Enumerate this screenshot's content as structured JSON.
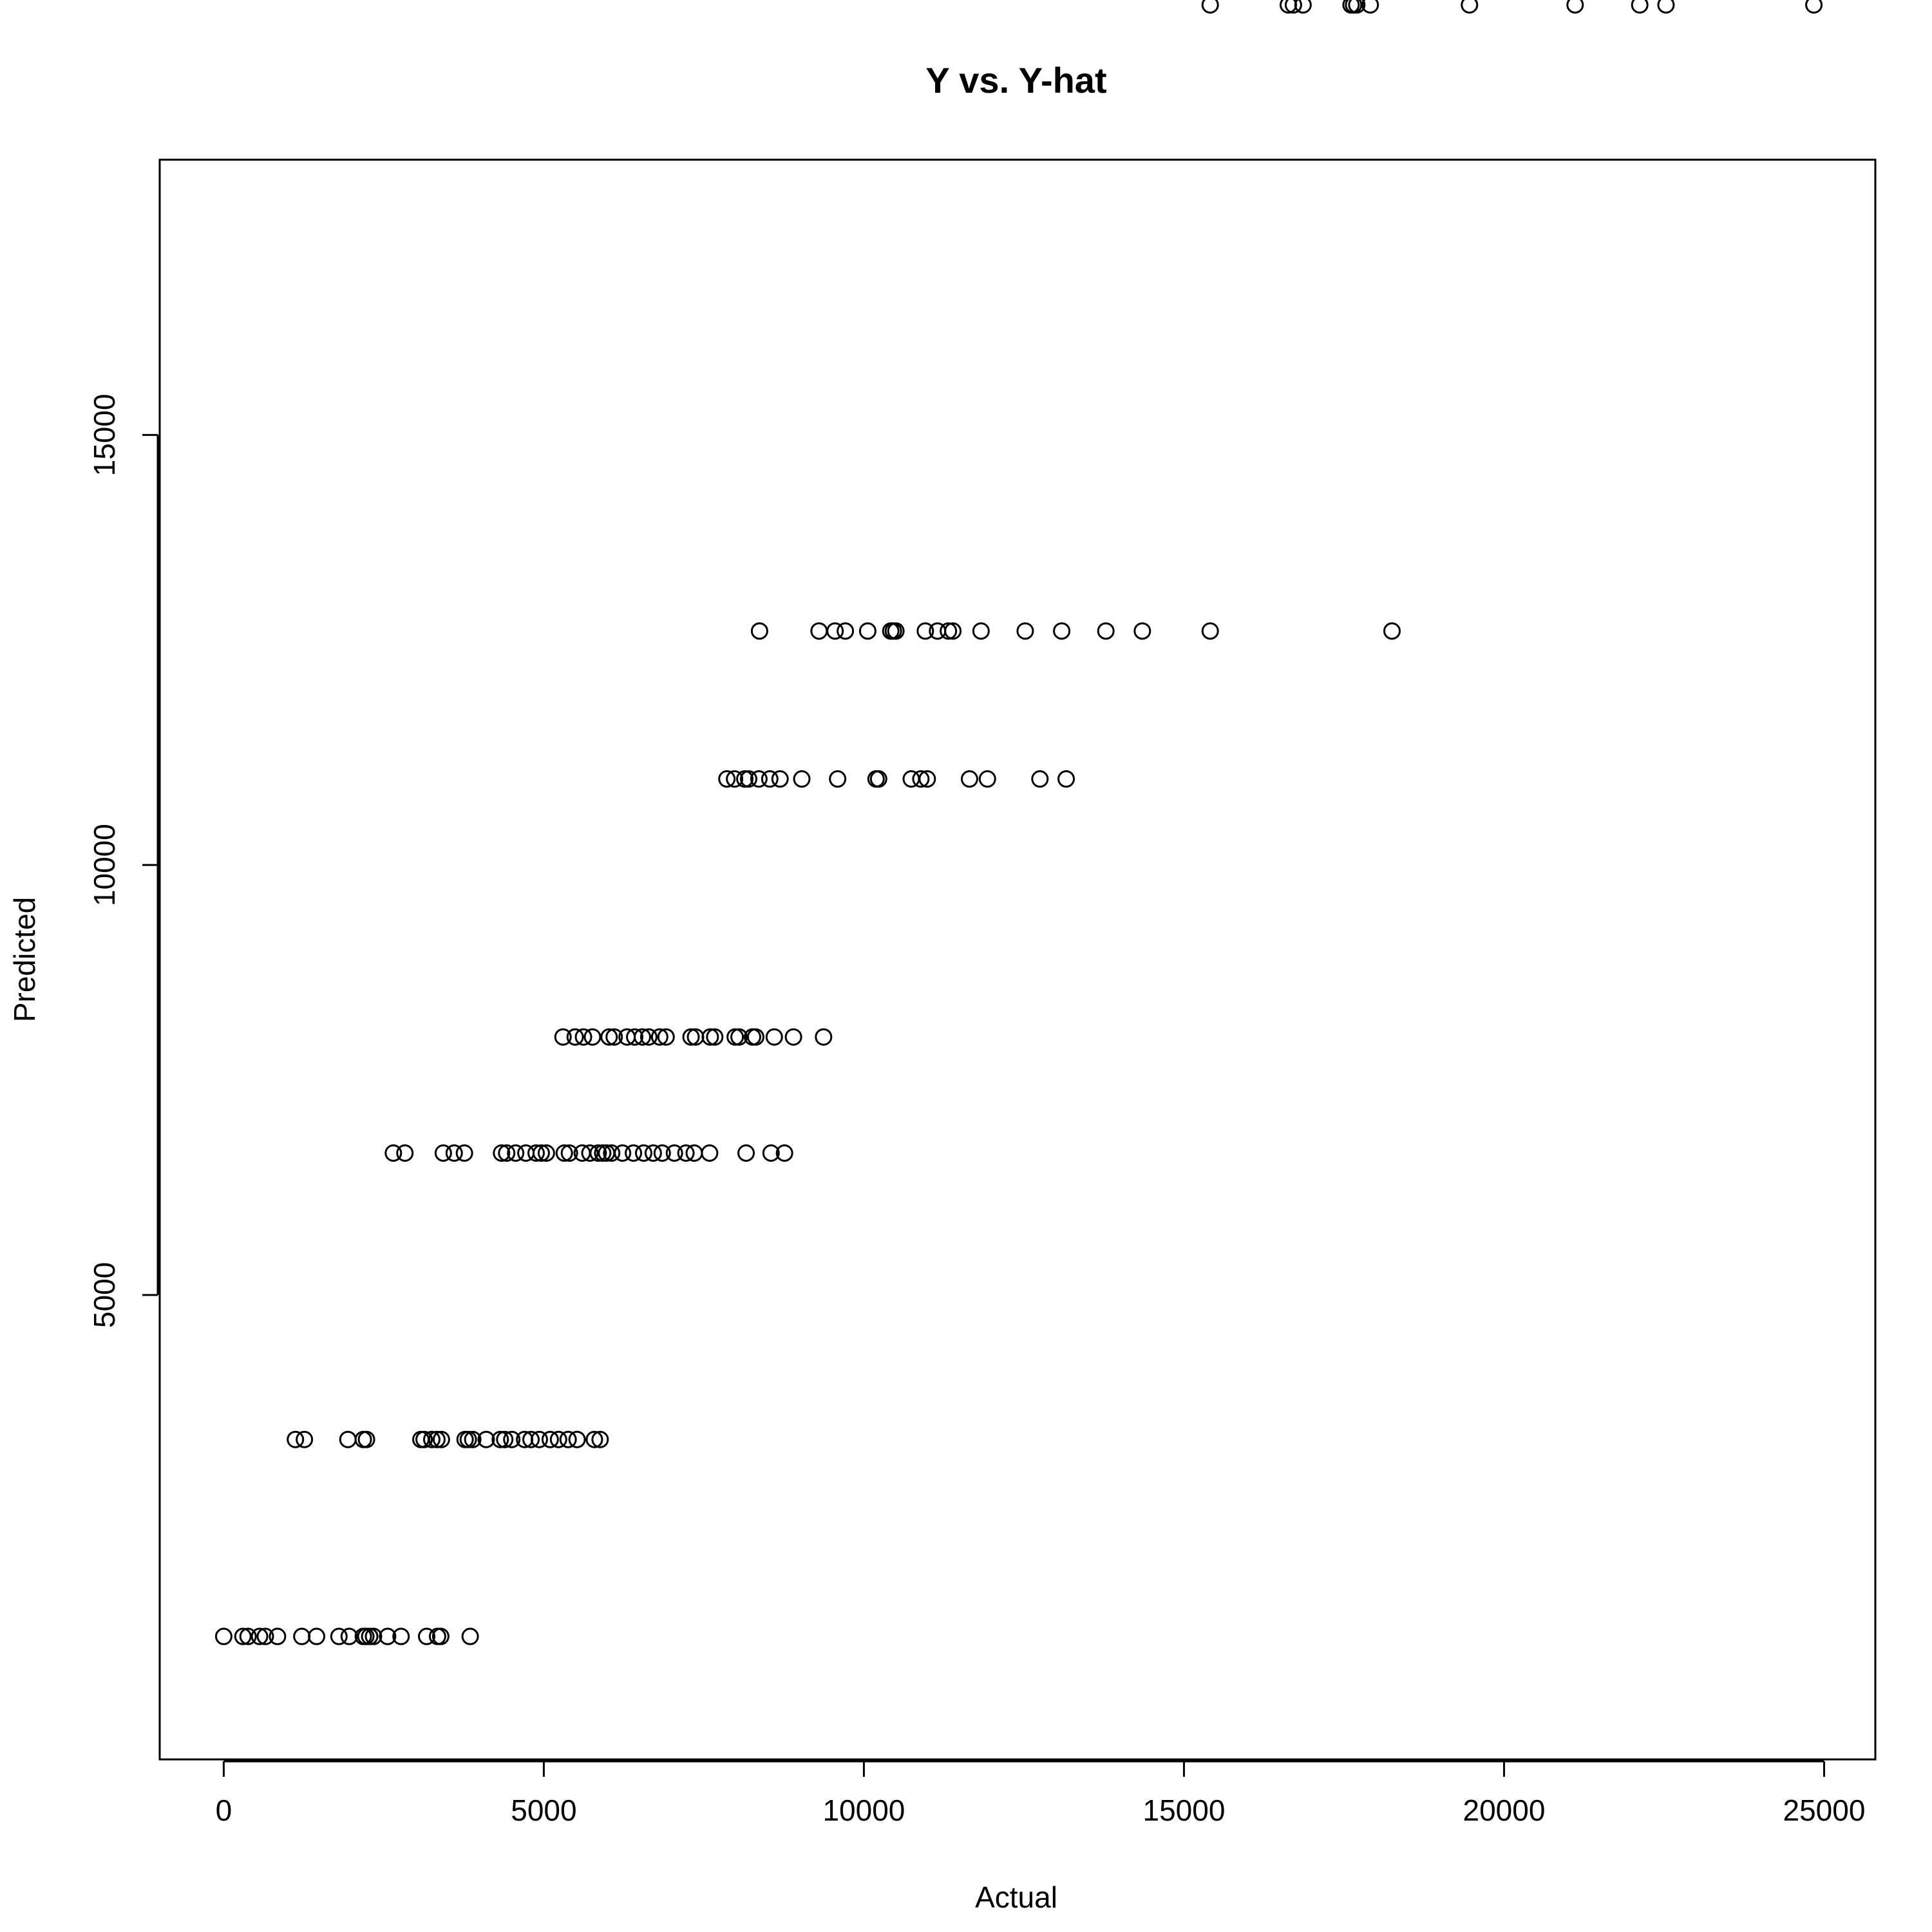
{
  "chart_data": {
    "type": "scatter",
    "title": "Y vs. Y-hat",
    "xlabel": "Actual",
    "ylabel": "Predicted",
    "xlim": [
      -1000,
      25800
    ],
    "ylim": [
      -400,
      18200
    ],
    "x_ticks": [
      {
        "value": 0,
        "label": "0"
      },
      {
        "value": 5000,
        "label": "5000"
      },
      {
        "value": 10000,
        "label": "10000"
      },
      {
        "value": 15000,
        "label": "15000"
      },
      {
        "value": 20000,
        "label": "20000"
      },
      {
        "value": 25000,
        "label": "25000"
      }
    ],
    "y_ticks": [
      {
        "value": 5000,
        "label": "5000"
      },
      {
        "value": 10000,
        "label": "10000"
      },
      {
        "value": 15000,
        "label": "15000"
      }
    ],
    "grid": false,
    "marker": "open-circle",
    "series": [
      {
        "points": [
          [
            0,
            1030
          ],
          [
            300,
            1030
          ],
          [
            380,
            1030
          ],
          [
            560,
            1030
          ],
          [
            650,
            1030
          ],
          [
            840,
            1030
          ],
          [
            1220,
            1030
          ],
          [
            1450,
            1030
          ],
          [
            1800,
            1030
          ],
          [
            1960,
            1030
          ],
          [
            2180,
            1030
          ],
          [
            2220,
            1030
          ],
          [
            2280,
            1030
          ],
          [
            2340,
            1030
          ],
          [
            2560,
            1030
          ],
          [
            2770,
            1030
          ],
          [
            3170,
            1030
          ],
          [
            3340,
            1030
          ],
          [
            3390,
            1030
          ],
          [
            3850,
            1030
          ],
          [
            1120,
            3320
          ],
          [
            1260,
            3320
          ],
          [
            1940,
            3320
          ],
          [
            2180,
            3320
          ],
          [
            2230,
            3320
          ],
          [
            3080,
            3320
          ],
          [
            3130,
            3320
          ],
          [
            3250,
            3320
          ],
          [
            3330,
            3320
          ],
          [
            3400,
            3320
          ],
          [
            3770,
            3320
          ],
          [
            3820,
            3320
          ],
          [
            3890,
            3320
          ],
          [
            4100,
            3320
          ],
          [
            4320,
            3320
          ],
          [
            4390,
            3320
          ],
          [
            4500,
            3320
          ],
          [
            4700,
            3320
          ],
          [
            4800,
            3320
          ],
          [
            4930,
            3320
          ],
          [
            5100,
            3320
          ],
          [
            5230,
            3320
          ],
          [
            5380,
            3320
          ],
          [
            5520,
            3320
          ],
          [
            5790,
            3320
          ],
          [
            5880,
            3320
          ],
          [
            2650,
            6650
          ],
          [
            2830,
            6650
          ],
          [
            3430,
            6650
          ],
          [
            3600,
            6650
          ],
          [
            3760,
            6650
          ],
          [
            4340,
            6650
          ],
          [
            4420,
            6650
          ],
          [
            4560,
            6650
          ],
          [
            4720,
            6650
          ],
          [
            4880,
            6650
          ],
          [
            4960,
            6650
          ],
          [
            5040,
            6650
          ],
          [
            5320,
            6650
          ],
          [
            5400,
            6650
          ],
          [
            5600,
            6650
          ],
          [
            5720,
            6650
          ],
          [
            5850,
            6650
          ],
          [
            5920,
            6650
          ],
          [
            5980,
            6650
          ],
          [
            6060,
            6650
          ],
          [
            6230,
            6650
          ],
          [
            6400,
            6650
          ],
          [
            6560,
            6650
          ],
          [
            6710,
            6650
          ],
          [
            6850,
            6650
          ],
          [
            7040,
            6650
          ],
          [
            7220,
            6650
          ],
          [
            7350,
            6650
          ],
          [
            7590,
            6650
          ],
          [
            8160,
            6650
          ],
          [
            8550,
            6650
          ],
          [
            8760,
            6650
          ],
          [
            5300,
            8000
          ],
          [
            5490,
            8000
          ],
          [
            5620,
            8000
          ],
          [
            5760,
            8000
          ],
          [
            6020,
            8000
          ],
          [
            6100,
            8000
          ],
          [
            6300,
            8000
          ],
          [
            6420,
            8000
          ],
          [
            6540,
            8000
          ],
          [
            6640,
            8000
          ],
          [
            6810,
            8000
          ],
          [
            6910,
            8000
          ],
          [
            7300,
            8000
          ],
          [
            7370,
            8000
          ],
          [
            7600,
            8000
          ],
          [
            7670,
            8000
          ],
          [
            7990,
            8000
          ],
          [
            8050,
            8000
          ],
          [
            8260,
            8000
          ],
          [
            8310,
            8000
          ],
          [
            8600,
            8000
          ],
          [
            8900,
            8000
          ],
          [
            9370,
            8000
          ],
          [
            7860,
            11000
          ],
          [
            7980,
            11000
          ],
          [
            8140,
            11000
          ],
          [
            8200,
            11000
          ],
          [
            8360,
            11000
          ],
          [
            8530,
            11000
          ],
          [
            8690,
            11000
          ],
          [
            9030,
            11000
          ],
          [
            9590,
            11000
          ],
          [
            10190,
            11000
          ],
          [
            10230,
            11000
          ],
          [
            10740,
            11000
          ],
          [
            10890,
            11000
          ],
          [
            10990,
            11000
          ],
          [
            11650,
            11000
          ],
          [
            11930,
            11000
          ],
          [
            12750,
            11000
          ],
          [
            13160,
            11000
          ],
          [
            8370,
            12720
          ],
          [
            9300,
            12720
          ],
          [
            9550,
            12720
          ],
          [
            9710,
            12720
          ],
          [
            10060,
            12720
          ],
          [
            10420,
            12720
          ],
          [
            10460,
            12720
          ],
          [
            10500,
            12720
          ],
          [
            10960,
            12720
          ],
          [
            11150,
            12720
          ],
          [
            11320,
            12720
          ],
          [
            11390,
            12720
          ],
          [
            11830,
            12720
          ],
          [
            12520,
            12720
          ],
          [
            13090,
            12720
          ],
          [
            13780,
            12720
          ],
          [
            14350,
            12720
          ],
          [
            15410,
            12720
          ],
          [
            18250,
            12720
          ],
          [
            15410,
            20000
          ],
          [
            16630,
            20000
          ],
          [
            16710,
            20000
          ],
          [
            16860,
            20000
          ],
          [
            17610,
            20000
          ],
          [
            17650,
            20000
          ],
          [
            17700,
            20000
          ],
          [
            17910,
            20000
          ],
          [
            19460,
            20000
          ],
          [
            21110,
            20000
          ],
          [
            22120,
            20000
          ],
          [
            22530,
            20000
          ],
          [
            24840,
            20000
          ]
        ]
      }
    ]
  }
}
